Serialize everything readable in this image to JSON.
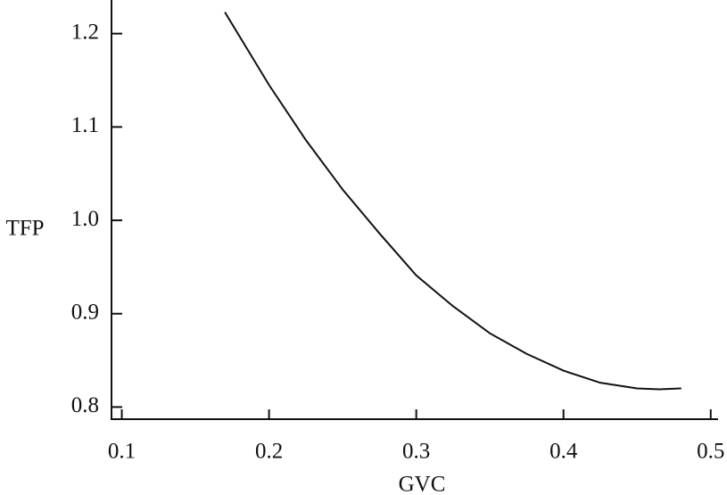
{
  "chart_data": {
    "type": "line",
    "x_label": "GVC",
    "y_label": "TFP",
    "x": [
      0.17,
      0.2,
      0.225,
      0.25,
      0.275,
      0.3,
      0.325,
      0.35,
      0.375,
      0.4,
      0.425,
      0.45,
      0.465,
      0.48
    ],
    "series": [
      {
        "color": "#111111",
        "values": [
          1.223,
          1.145,
          1.086,
          1.033,
          0.986,
          0.941,
          0.908,
          0.879,
          0.857,
          0.839,
          0.826,
          0.82,
          0.819,
          0.82
        ]
      }
    ],
    "xlim": [
      0.093,
      0.505
    ],
    "ylim": [
      0.787,
      1.236
    ],
    "xticks": [
      0.1,
      0.2,
      0.3,
      0.4,
      0.5
    ],
    "yticks": [
      0.8,
      0.9,
      {
        "value": 1.0,
        "label": "1.0"
      },
      1.1,
      1.2
    ],
    "grid": false
  }
}
